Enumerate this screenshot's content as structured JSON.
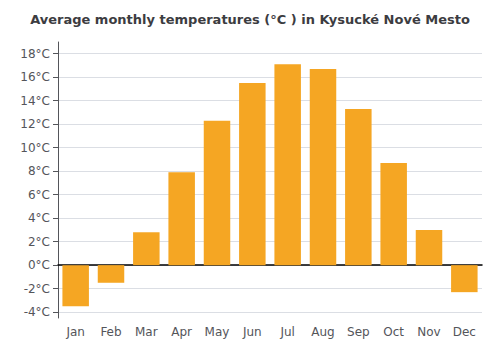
{
  "chart_data": {
    "type": "bar",
    "title": "Average monthly temperatures (°C ) in Kysucké Nové Mesto",
    "categories": [
      "Jan",
      "Feb",
      "Mar",
      "Apr",
      "May",
      "Jun",
      "Jul",
      "Aug",
      "Sep",
      "Oct",
      "Nov",
      "Dec"
    ],
    "values": [
      -3.5,
      -1.5,
      2.8,
      7.9,
      12.3,
      15.5,
      17.1,
      16.7,
      13.3,
      8.7,
      3.0,
      -2.3
    ],
    "color": "#F5A623",
    "ylim": [
      -4.5,
      19
    ],
    "yticks": [
      {
        "value": -4,
        "label": "-4°C"
      },
      {
        "value": -2,
        "label": "-2°C"
      },
      {
        "value": 0,
        "label": "0°C"
      },
      {
        "value": 2,
        "label": "2°C"
      },
      {
        "value": 4,
        "label": "4°C"
      },
      {
        "value": 6,
        "label": "6°C"
      },
      {
        "value": 8,
        "label": "8°C"
      },
      {
        "value": 10,
        "label": "10°C"
      },
      {
        "value": 12,
        "label": "12°C"
      },
      {
        "value": 14,
        "label": "14°C"
      },
      {
        "value": 16,
        "label": "16°C"
      },
      {
        "value": 18,
        "label": "18°C"
      }
    ],
    "grid": true
  }
}
